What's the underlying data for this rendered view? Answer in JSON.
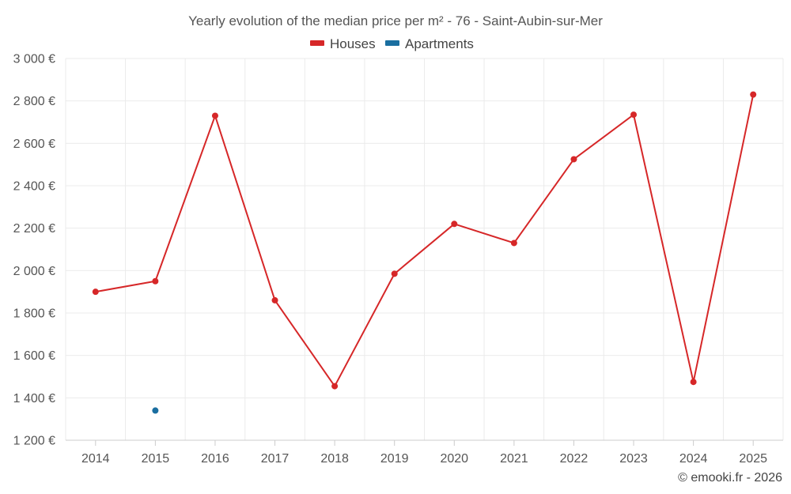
{
  "chart_data": {
    "type": "line",
    "title": "Yearly evolution of the median price per m² - 76 - Saint-Aubin-sur-Mer",
    "categories": [
      "2014",
      "2015",
      "2016",
      "2017",
      "2018",
      "2019",
      "2020",
      "2021",
      "2022",
      "2023",
      "2024",
      "2025"
    ],
    "series": [
      {
        "name": "Houses",
        "color": "#d62728",
        "values": [
          1900,
          1950,
          2730,
          1860,
          1455,
          1985,
          2220,
          2130,
          2525,
          2735,
          1475,
          2830
        ]
      },
      {
        "name": "Apartments",
        "color": "#1a6ea0",
        "values": [
          null,
          1340,
          null,
          null,
          null,
          null,
          null,
          null,
          null,
          null,
          null,
          null
        ]
      }
    ],
    "ylim": [
      1200,
      3000
    ],
    "yticks": [
      1200,
      1400,
      1600,
      1800,
      2000,
      2200,
      2400,
      2600,
      2800,
      3000
    ],
    "ytick_labels": [
      "1 200 €",
      "1 400 €",
      "1 600 €",
      "1 800 €",
      "2 000 €",
      "2 200 €",
      "2 400 €",
      "2 600 €",
      "2 800 €",
      "3 000 €"
    ],
    "grid": true,
    "legend_position": "top-center",
    "xlabel": "",
    "ylabel": ""
  },
  "credit": "© emooki.fr - 2026"
}
